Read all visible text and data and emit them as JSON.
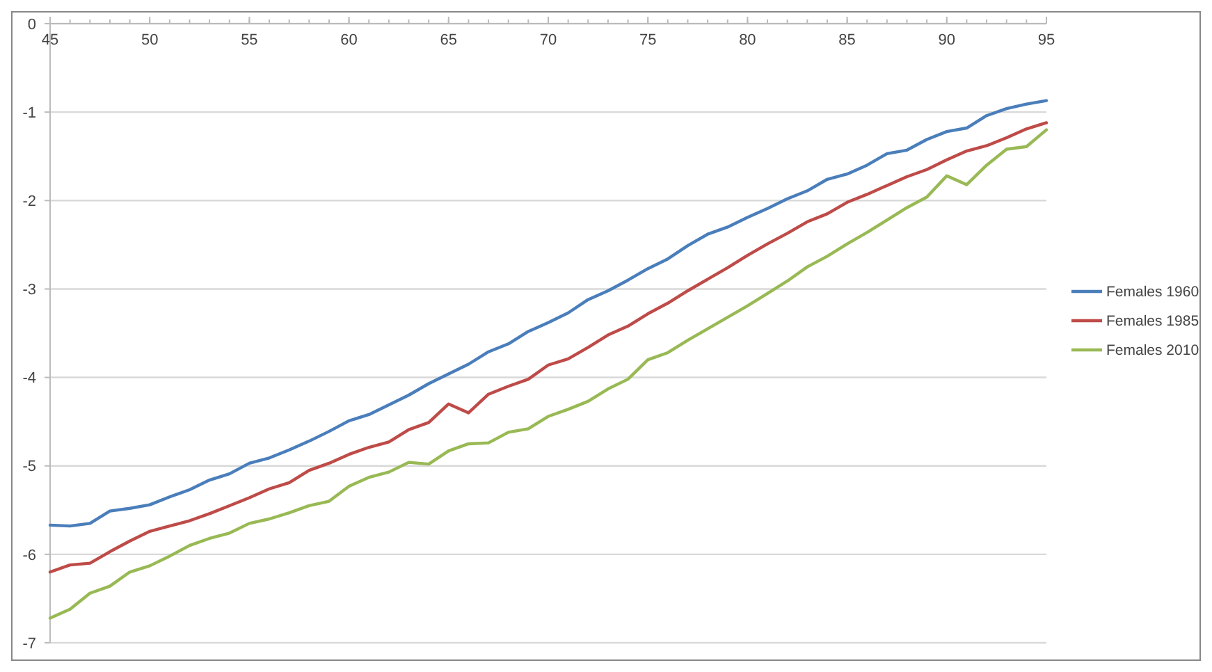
{
  "chart_data": {
    "type": "line",
    "x": [
      45,
      46,
      47,
      48,
      49,
      50,
      51,
      52,
      53,
      54,
      55,
      56,
      57,
      58,
      59,
      60,
      61,
      62,
      63,
      64,
      65,
      66,
      67,
      68,
      69,
      70,
      71,
      72,
      73,
      74,
      75,
      76,
      77,
      78,
      79,
      80,
      81,
      82,
      83,
      84,
      85,
      86,
      87,
      88,
      89,
      90,
      91,
      92,
      93,
      94,
      95
    ],
    "series": [
      {
        "name": "Females 1960",
        "color": "#4a7ebb",
        "values": [
          -5.67,
          -5.68,
          -5.65,
          -5.51,
          -5.48,
          -5.44,
          -5.35,
          -5.27,
          -5.16,
          -5.09,
          -4.97,
          -4.91,
          -4.82,
          -4.72,
          -4.61,
          -4.49,
          -4.42,
          -4.31,
          -4.2,
          -4.07,
          -3.96,
          -3.85,
          -3.71,
          -3.62,
          -3.48,
          -3.38,
          -3.27,
          -3.12,
          -3.02,
          -2.9,
          -2.77,
          -2.66,
          -2.51,
          -2.38,
          -2.3,
          -2.19,
          -2.09,
          -1.98,
          -1.89,
          -1.76,
          -1.7,
          -1.6,
          -1.47,
          -1.43,
          -1.31,
          -1.22,
          -1.18,
          -1.04,
          -0.96,
          -0.91,
          -0.87
        ]
      },
      {
        "name": "Females 1985",
        "color": "#be4b48",
        "values": [
          -6.2,
          -6.12,
          -6.1,
          -5.97,
          -5.85,
          -5.74,
          -5.68,
          -5.62,
          -5.54,
          -5.45,
          -5.36,
          -5.26,
          -5.19,
          -5.05,
          -4.97,
          -4.87,
          -4.79,
          -4.73,
          -4.59,
          -4.51,
          -4.3,
          -4.4,
          -4.19,
          -4.1,
          -4.02,
          -3.86,
          -3.79,
          -3.66,
          -3.52,
          -3.42,
          -3.28,
          -3.16,
          -3.02,
          -2.89,
          -2.76,
          -2.62,
          -2.49,
          -2.37,
          -2.24,
          -2.15,
          -2.02,
          -1.93,
          -1.83,
          -1.73,
          -1.65,
          -1.54,
          -1.44,
          -1.38,
          -1.29,
          -1.19,
          -1.12
        ]
      },
      {
        "name": "Females 2010",
        "color": "#98b954",
        "values": [
          -6.72,
          -6.62,
          -6.44,
          -6.36,
          -6.2,
          -6.13,
          -6.02,
          -5.9,
          -5.82,
          -5.76,
          -5.65,
          -5.6,
          -5.53,
          -5.45,
          -5.4,
          -5.23,
          -5.13,
          -5.07,
          -4.96,
          -4.98,
          -4.83,
          -4.75,
          -4.74,
          -4.62,
          -4.58,
          -4.44,
          -4.36,
          -4.27,
          -4.13,
          -4.02,
          -3.8,
          -3.72,
          -3.58,
          -3.45,
          -3.32,
          -3.19,
          -3.05,
          -2.91,
          -2.75,
          -2.63,
          -2.49,
          -2.36,
          -2.22,
          -2.08,
          -1.96,
          -1.72,
          -1.82,
          -1.6,
          -1.42,
          -1.39,
          -1.2
        ]
      }
    ],
    "xlim": [
      45,
      95
    ],
    "xticks": [
      45,
      50,
      55,
      60,
      65,
      70,
      75,
      80,
      85,
      90,
      95
    ],
    "ylim": [
      -7,
      0
    ],
    "yticks": [
      -7,
      -6,
      -5,
      -4,
      -3,
      -2,
      -1,
      0
    ],
    "grid": "y",
    "legend": "right",
    "marker": "none",
    "line_style": "solid"
  }
}
